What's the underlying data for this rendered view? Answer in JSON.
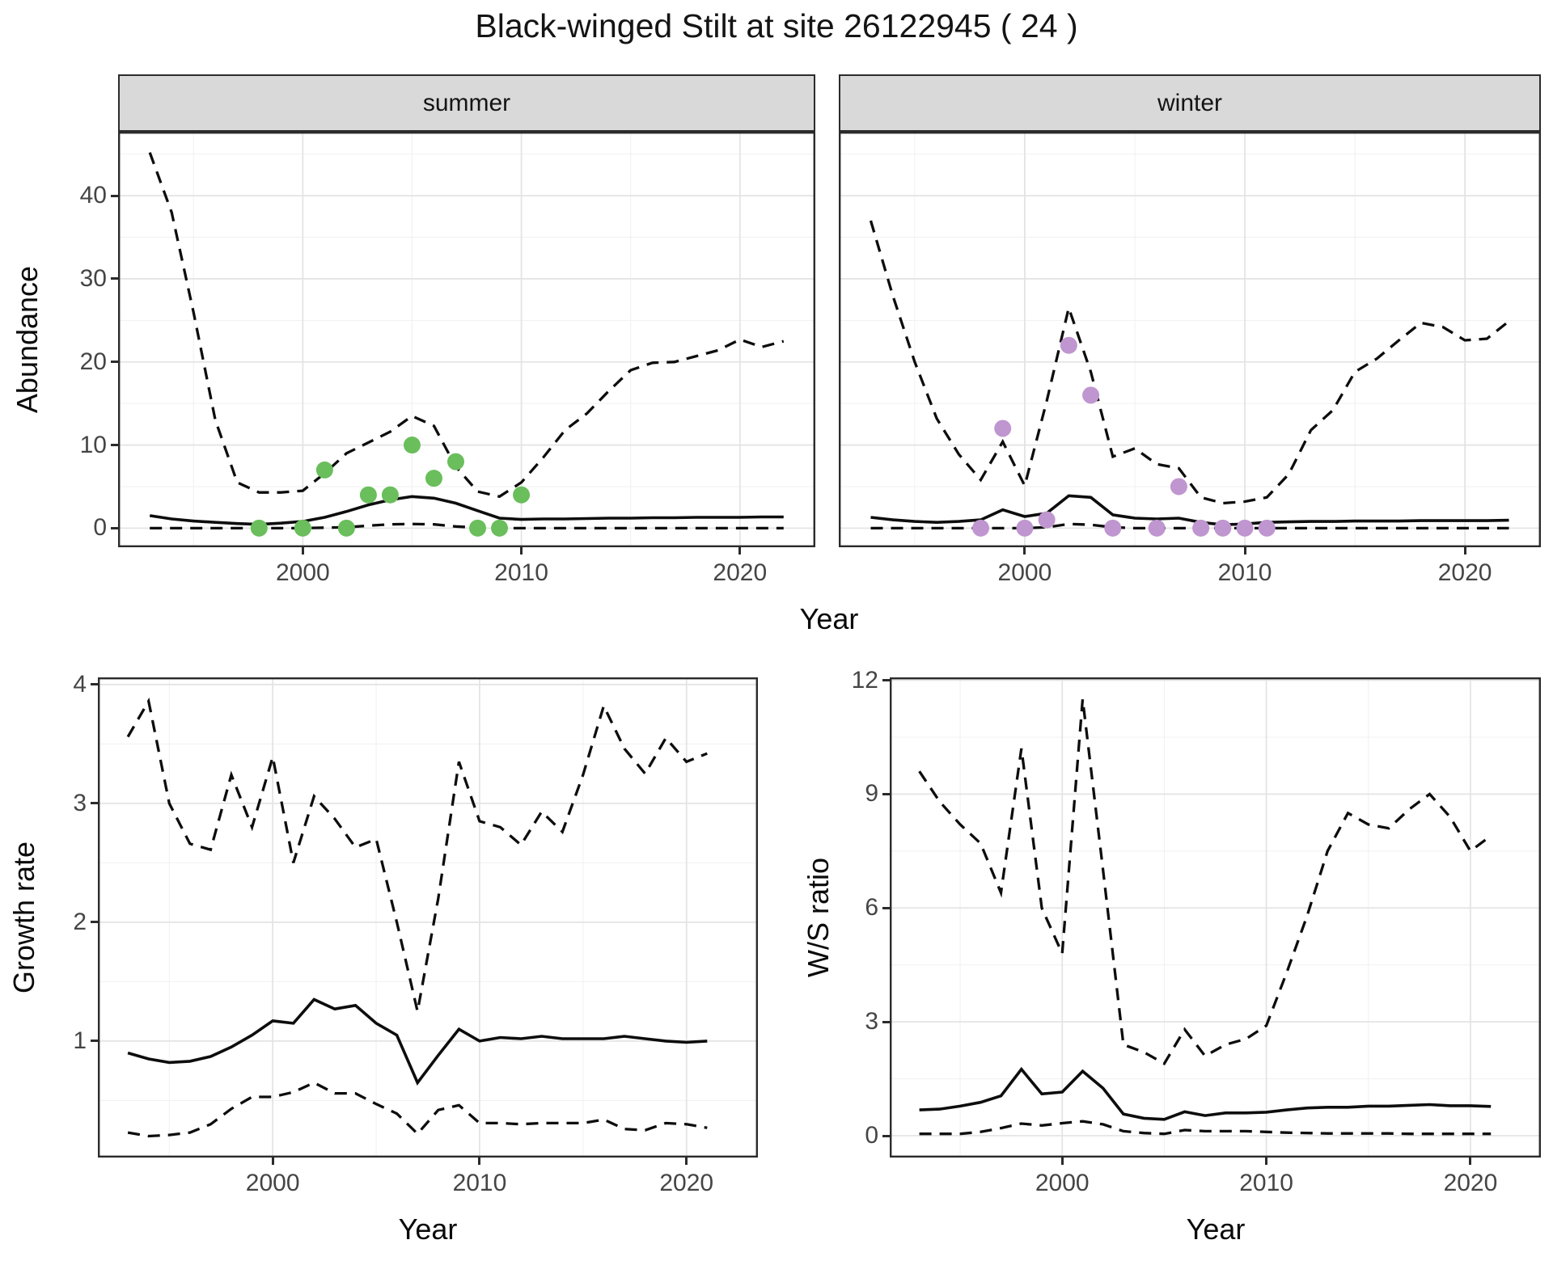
{
  "page": {
    "title": "Black-winged Stilt at site 26122945 ( 24 )",
    "species": "Black-winged Stilt",
    "site_label": "26122945 ( 24 )",
    "colors": {
      "summer_points": "#6abe5c",
      "winter_points": "#bf96cf",
      "line": "#0d0d0d",
      "strip_bg": "#d9d9d9",
      "panel_border": "#2b2b2b",
      "grid_major": "#e4e4e4",
      "grid_minor": "#f0f0f0",
      "tick_text": "#454545"
    }
  },
  "chart_data": [
    {
      "id": "abundance-summer",
      "type": "line",
      "facet_label": "summer",
      "xlabel": "Year",
      "ylabel": "Abundance",
      "xlim": [
        1991.55,
        2023.45
      ],
      "ylim": [
        -2.3,
        47.7
      ],
      "x_ticks": [
        2000,
        2010,
        2020
      ],
      "y_ticks": [
        0,
        10,
        20,
        30,
        40
      ],
      "grid": true,
      "legend": "none",
      "x": [
        1993,
        1994,
        1995,
        1996,
        1997,
        1998,
        1999,
        2000,
        2001,
        2002,
        2003,
        2004,
        2005,
        2006,
        2007,
        2008,
        2009,
        2010,
        2011,
        2012,
        2013,
        2014,
        2015,
        2016,
        2017,
        2018,
        2019,
        2020,
        2021,
        2022
      ],
      "series": [
        {
          "name": "upper_95ci",
          "style": "dashed",
          "values": [
            45.2,
            38.0,
            26.0,
            13.0,
            5.5,
            4.3,
            4.3,
            4.5,
            6.6,
            9.0,
            10.3,
            11.6,
            13.5,
            12.3,
            7.4,
            4.4,
            3.8,
            5.5,
            8.5,
            11.8,
            13.8,
            16.5,
            19.0,
            19.9,
            20.0,
            20.7,
            21.4,
            22.7,
            21.8,
            22.5
          ]
        },
        {
          "name": "fitted",
          "style": "solid",
          "values": [
            1.5,
            1.1,
            0.85,
            0.7,
            0.55,
            0.45,
            0.6,
            0.8,
            1.3,
            2.0,
            2.8,
            3.4,
            3.8,
            3.6,
            3.0,
            2.1,
            1.2,
            1.05,
            1.1,
            1.1,
            1.15,
            1.2,
            1.2,
            1.25,
            1.25,
            1.3,
            1.3,
            1.3,
            1.35,
            1.35
          ]
        },
        {
          "name": "lower_95ci",
          "style": "dashed",
          "values": [
            0,
            0,
            0,
            0,
            0,
            0,
            0,
            0,
            0.05,
            0.1,
            0.3,
            0.45,
            0.5,
            0.45,
            0.2,
            0.05,
            0,
            0,
            0,
            0,
            0,
            0,
            0,
            0,
            0,
            0,
            0,
            0,
            0,
            0
          ]
        }
      ],
      "points": {
        "name": "observed_counts",
        "color": "#6abe5c",
        "x": [
          1998,
          2000,
          2001,
          2002,
          2003,
          2004,
          2005,
          2006,
          2007,
          2008,
          2009,
          2010
        ],
        "y": [
          0,
          0,
          7,
          0,
          4,
          4,
          10,
          6,
          8,
          0,
          0,
          4
        ]
      }
    },
    {
      "id": "abundance-winter",
      "type": "line",
      "facet_label": "winter",
      "xlabel": "Year",
      "ylabel": "Abundance",
      "xlim": [
        1991.55,
        2023.45
      ],
      "ylim": [
        -2.3,
        47.7
      ],
      "x_ticks": [
        2000,
        2010,
        2020
      ],
      "y_ticks": [
        0,
        10,
        20,
        30,
        40
      ],
      "grid": true,
      "legend": "none",
      "x": [
        1993,
        1994,
        1995,
        1996,
        1997,
        1998,
        1999,
        2000,
        2001,
        2002,
        2003,
        2004,
        2005,
        2006,
        2007,
        2008,
        2009,
        2010,
        2011,
        2012,
        2013,
        2014,
        2015,
        2016,
        2017,
        2018,
        2019,
        2020,
        2021,
        2022
      ],
      "series": [
        {
          "name": "upper_95ci",
          "style": "dashed",
          "values": [
            37.0,
            28.0,
            20.0,
            13.2,
            8.9,
            5.8,
            10.4,
            5.1,
            15.3,
            26.5,
            18.8,
            8.6,
            9.6,
            7.7,
            7.2,
            3.7,
            3.0,
            3.2,
            3.7,
            6.5,
            11.8,
            14.2,
            18.8,
            20.4,
            22.6,
            24.7,
            24.2,
            22.6,
            22.8,
            24.9
          ]
        },
        {
          "name": "fitted",
          "style": "solid",
          "values": [
            1.3,
            1.0,
            0.8,
            0.7,
            0.8,
            1.0,
            2.2,
            1.4,
            1.8,
            3.9,
            3.7,
            1.6,
            1.2,
            1.1,
            1.2,
            0.7,
            0.4,
            0.5,
            0.7,
            0.75,
            0.8,
            0.8,
            0.85,
            0.85,
            0.85,
            0.9,
            0.9,
            0.9,
            0.9,
            0.95
          ]
        },
        {
          "name": "lower_95ci",
          "style": "dashed",
          "values": [
            0,
            0,
            0,
            0,
            0,
            0,
            0,
            0,
            0.1,
            0.5,
            0.4,
            0.1,
            0,
            0,
            0,
            0,
            0,
            0,
            0,
            0,
            0,
            0,
            0,
            0,
            0,
            0,
            0,
            0,
            0,
            0
          ]
        }
      ],
      "points": {
        "name": "observed_counts",
        "color": "#bf96cf",
        "x": [
          1998,
          1999,
          2000,
          2001,
          2002,
          2003,
          2004,
          2006,
          2007,
          2008,
          2009,
          2010,
          2011
        ],
        "y": [
          0,
          12,
          0,
          1,
          22,
          16,
          0,
          0,
          5,
          0,
          0,
          0,
          0
        ]
      }
    },
    {
      "id": "growth-rate",
      "type": "line",
      "facet_label": "",
      "xlabel": "Year",
      "ylabel": "Growth rate",
      "xlim": [
        1991.55,
        2023.45
      ],
      "ylim": [
        0.02,
        4.06
      ],
      "x_ticks": [
        2000,
        2010,
        2020
      ],
      "y_ticks": [
        1,
        2,
        3,
        4
      ],
      "grid": true,
      "legend": "none",
      "x": [
        1993,
        1994,
        1995,
        1996,
        1997,
        1998,
        1999,
        2000,
        2001,
        2002,
        2003,
        2004,
        2005,
        2006,
        2007,
        2008,
        2009,
        2010,
        2011,
        2012,
        2013,
        2014,
        2015,
        2016,
        2017,
        2018,
        2019,
        2020,
        2021
      ],
      "series": [
        {
          "name": "upper_95ci",
          "style": "dashed",
          "values": [
            3.56,
            3.86,
            3.0,
            2.66,
            2.61,
            3.24,
            2.8,
            3.39,
            2.5,
            3.06,
            2.87,
            2.63,
            2.7,
            2.0,
            1.25,
            2.2,
            3.35,
            2.85,
            2.8,
            2.65,
            2.93,
            2.76,
            3.24,
            3.82,
            3.46,
            3.25,
            3.55,
            3.35,
            3.42
          ]
        },
        {
          "name": "fitted",
          "style": "solid",
          "values": [
            0.9,
            0.85,
            0.82,
            0.83,
            0.87,
            0.95,
            1.05,
            1.17,
            1.15,
            1.35,
            1.27,
            1.3,
            1.15,
            1.05,
            0.65,
            0.88,
            1.1,
            1.0,
            1.03,
            1.02,
            1.04,
            1.02,
            1.02,
            1.02,
            1.04,
            1.02,
            1.0,
            0.99,
            1.0
          ]
        },
        {
          "name": "lower_95ci",
          "style": "dashed",
          "values": [
            0.23,
            0.2,
            0.21,
            0.23,
            0.3,
            0.43,
            0.53,
            0.53,
            0.57,
            0.65,
            0.56,
            0.56,
            0.47,
            0.39,
            0.22,
            0.42,
            0.46,
            0.31,
            0.31,
            0.3,
            0.31,
            0.31,
            0.31,
            0.34,
            0.26,
            0.25,
            0.31,
            0.3,
            0.27
          ]
        }
      ],
      "points": null
    },
    {
      "id": "ws-ratio",
      "type": "line",
      "facet_label": "",
      "xlabel": "Year",
      "ylabel": "W/S ratio",
      "xlim": [
        1991.55,
        2023.45
      ],
      "ylim": [
        -0.575,
        12.075
      ],
      "x_ticks": [
        2000,
        2010,
        2020
      ],
      "y_ticks": [
        0,
        3,
        6,
        9,
        12
      ],
      "grid": true,
      "legend": "none",
      "x": [
        1993,
        1994,
        1995,
        1996,
        1997,
        1998,
        1999,
        2000,
        2001,
        2002,
        2003,
        2004,
        2005,
        2006,
        2007,
        2008,
        2009,
        2010,
        2011,
        2012,
        2013,
        2014,
        2015,
        2016,
        2017,
        2018,
        2019,
        2020,
        2021
      ],
      "series": [
        {
          "name": "upper_95ci",
          "style": "dashed",
          "values": [
            9.6,
            8.8,
            8.2,
            7.7,
            6.4,
            10.2,
            6.0,
            4.8,
            11.5,
            7.0,
            2.4,
            2.2,
            1.9,
            2.8,
            2.1,
            2.4,
            2.55,
            2.9,
            4.3,
            5.8,
            7.5,
            8.5,
            8.2,
            8.1,
            8.6,
            9.0,
            8.4,
            7.5,
            7.9
          ]
        },
        {
          "name": "fitted",
          "style": "solid",
          "values": [
            0.68,
            0.7,
            0.78,
            0.88,
            1.05,
            1.75,
            1.1,
            1.15,
            1.7,
            1.25,
            0.57,
            0.46,
            0.43,
            0.63,
            0.53,
            0.6,
            0.6,
            0.62,
            0.68,
            0.73,
            0.75,
            0.75,
            0.78,
            0.78,
            0.8,
            0.82,
            0.79,
            0.79,
            0.77
          ]
        },
        {
          "name": "lower_95ci",
          "style": "dashed",
          "values": [
            0.05,
            0.05,
            0.05,
            0.1,
            0.2,
            0.32,
            0.27,
            0.33,
            0.38,
            0.3,
            0.12,
            0.07,
            0.05,
            0.15,
            0.12,
            0.12,
            0.12,
            0.1,
            0.08,
            0.07,
            0.06,
            0.06,
            0.06,
            0.06,
            0.05,
            0.05,
            0.05,
            0.05,
            0.05
          ]
        }
      ],
      "points": null
    }
  ]
}
